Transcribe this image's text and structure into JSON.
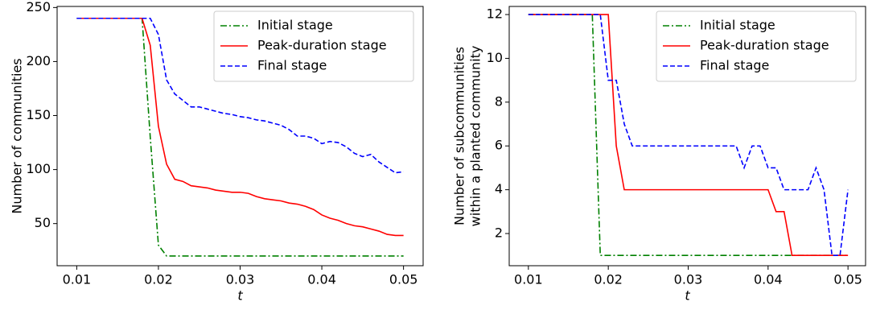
{
  "chart_data": [
    {
      "type": "line",
      "xlabel": "t",
      "ylabel": "Number of communities",
      "x": [
        0.01,
        0.018,
        0.019,
        0.02,
        0.021,
        0.022,
        0.023,
        0.024,
        0.025,
        0.026,
        0.027,
        0.028,
        0.029,
        0.03,
        0.031,
        0.032,
        0.033,
        0.034,
        0.035,
        0.036,
        0.037,
        0.038,
        0.039,
        0.04,
        0.041,
        0.042,
        0.043,
        0.044,
        0.045,
        0.046,
        0.047,
        0.048,
        0.049,
        0.05
      ],
      "xlim": [
        0.0076,
        0.0524
      ],
      "ylim": [
        11,
        251
      ],
      "xticks": [
        0.01,
        0.02,
        0.03,
        0.04,
        0.05
      ],
      "yticks": [
        50,
        100,
        150,
        200,
        250
      ],
      "legend": "upper right",
      "series": [
        {
          "name": "Initial stage",
          "color": "#008000",
          "style": "dashdot",
          "values": [
            240,
            240,
            130,
            30,
            20,
            20,
            20,
            20,
            20,
            20,
            20,
            20,
            20,
            20,
            20,
            20,
            20,
            20,
            20,
            20,
            20,
            20,
            20,
            20,
            20,
            20,
            20,
            20,
            20,
            20,
            20,
            20,
            20,
            20
          ]
        },
        {
          "name": "Peak-duration stage",
          "color": "#ff0000",
          "style": "solid",
          "values": [
            240,
            240,
            215,
            140,
            105,
            91,
            89,
            85,
            84,
            83,
            81,
            80,
            79,
            79,
            78,
            75,
            73,
            72,
            71,
            69,
            68,
            66,
            63,
            58,
            55,
            53,
            50,
            48,
            47,
            45,
            43,
            40,
            39,
            39
          ]
        },
        {
          "name": "Final stage",
          "color": "#0000ff",
          "style": "dashed",
          "values": [
            240,
            240,
            240,
            225,
            183,
            170,
            164,
            158,
            158,
            156,
            154,
            152,
            151,
            149,
            148,
            146,
            145,
            143,
            141,
            137,
            131,
            131,
            129,
            124,
            126,
            125,
            121,
            115,
            112,
            114,
            107,
            102,
            97,
            98
          ]
        }
      ]
    },
    {
      "type": "line",
      "xlabel": "t",
      "ylabel": [
        "Number of subcommunities",
        "within a planted community"
      ],
      "x": [
        0.01,
        0.018,
        0.019,
        0.02,
        0.021,
        0.022,
        0.023,
        0.024,
        0.025,
        0.026,
        0.027,
        0.028,
        0.029,
        0.03,
        0.031,
        0.032,
        0.033,
        0.034,
        0.035,
        0.036,
        0.037,
        0.038,
        0.039,
        0.04,
        0.041,
        0.042,
        0.043,
        0.044,
        0.045,
        0.046,
        0.047,
        0.048,
        0.049,
        0.05
      ],
      "xlim": [
        0.0076,
        0.0522
      ],
      "ylim": [
        0.53,
        12.37
      ],
      "xticks": [
        0.01,
        0.02,
        0.03,
        0.04,
        0.05
      ],
      "yticks": [
        2,
        4,
        6,
        8,
        10,
        12
      ],
      "legend": "upper right",
      "series": [
        {
          "name": "Initial stage",
          "color": "#008000",
          "style": "dashdot",
          "values": [
            12,
            12,
            1,
            1,
            1,
            1,
            1,
            1,
            1,
            1,
            1,
            1,
            1,
            1,
            1,
            1,
            1,
            1,
            1,
            1,
            1,
            1,
            1,
            1,
            1,
            1,
            1,
            1,
            1,
            1,
            1,
            1,
            1,
            1
          ]
        },
        {
          "name": "Peak-duration stage",
          "color": "#ff0000",
          "style": "solid",
          "values": [
            12,
            12,
            12,
            12,
            6,
            4,
            4,
            4,
            4,
            4,
            4,
            4,
            4,
            4,
            4,
            4,
            4,
            4,
            4,
            4,
            4,
            4,
            4,
            4,
            3,
            3,
            1,
            1,
            1,
            1,
            1,
            1,
            1,
            1
          ]
        },
        {
          "name": "Final stage",
          "color": "#0000ff",
          "style": "dashed",
          "values": [
            12,
            12,
            12,
            9,
            9,
            7,
            6,
            6,
            6,
            6,
            6,
            6,
            6,
            6,
            6,
            6,
            6,
            6,
            6,
            6,
            5,
            6,
            6,
            5,
            5,
            4,
            4,
            4,
            4,
            5,
            4,
            1,
            1,
            4
          ]
        }
      ]
    }
  ]
}
